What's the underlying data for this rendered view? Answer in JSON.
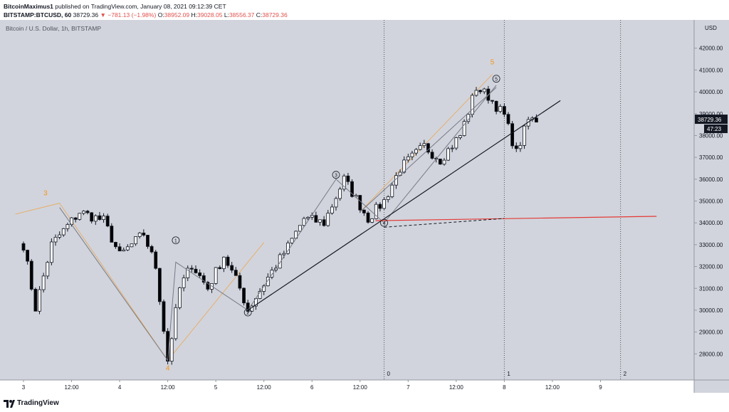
{
  "header": {
    "author": "BitcoinMaximus1",
    "published": "published on TradingView.com, January 08, 2021 09:12:39 CET",
    "symbol": "BITSTAMP:BTCUSD, 60",
    "last": "38729.36",
    "change_arrow": "▼",
    "change": "−781.13 (−1.98%)",
    "o_label": "O:",
    "o_value": "38952.09",
    "h_label": "H:",
    "h_value": "39028.05",
    "l_label": "L:",
    "l_value": "38556.37",
    "c_label": "C:",
    "c_value": "38729.36"
  },
  "colors": {
    "background": "#d1d4dc",
    "up_body": "#ffffff",
    "down_body": "#000000",
    "wick": "#131722",
    "wave_orange": "#f7931a",
    "resistance_red": "#e53935",
    "trend_black": "#131722",
    "price_tag": "#131722"
  },
  "footer": {
    "brand": "TradingView",
    "logo_icon": "tradingview-logo-icon"
  },
  "chart_data": {
    "type": "candlestick",
    "title": "Bitcoin / U.S. Dollar, 1h, BITSTAMP",
    "y_unit": "USD",
    "ylim": [
      27000,
      43000
    ],
    "y_ticks": [
      28000,
      29000,
      30000,
      31000,
      32000,
      33000,
      34000,
      35000,
      36000,
      37000,
      38000,
      39000,
      40000,
      41000,
      42000
    ],
    "x_range": [
      "2021-01-03T00:00",
      "2021-01-09T12:00"
    ],
    "x_tick_labels": [
      {
        "t": "2021-01-03T00:00",
        "label": "3"
      },
      {
        "t": "2021-01-03T12:00",
        "label": "12:00"
      },
      {
        "t": "2021-01-04T00:00",
        "label": "4"
      },
      {
        "t": "2021-01-04T12:00",
        "label": "12:00"
      },
      {
        "t": "2021-01-05T00:00",
        "label": "5"
      },
      {
        "t": "2021-01-05T12:00",
        "label": "12:00"
      },
      {
        "t": "2021-01-06T00:00",
        "label": "6"
      },
      {
        "t": "2021-01-06T12:00",
        "label": "12:00"
      },
      {
        "t": "2021-01-07T00:00",
        "label": "7"
      },
      {
        "t": "2021-01-07T12:00",
        "label": "12:00"
      },
      {
        "t": "2021-01-08T00:00",
        "label": "8"
      },
      {
        "t": "2021-01-08T12:00",
        "label": "12:00"
      },
      {
        "t": "2021-01-09T00:00",
        "label": "9"
      }
    ],
    "last_price": "38729.36",
    "countdown": "47:23",
    "ohlc_key_points": [
      {
        "t": "2021-01-03T00:00",
        "price": 33000
      },
      {
        "t": "2021-01-03T03:00",
        "price": 30100
      },
      {
        "t": "2021-01-03T07:00",
        "price": 33000
      },
      {
        "t": "2021-01-03T14:00",
        "price": 34500
      },
      {
        "t": "2021-01-03T20:00",
        "price": 34100
      },
      {
        "t": "2021-01-04T00:00",
        "price": 32500
      },
      {
        "t": "2021-01-04T06:00",
        "price": 33500
      },
      {
        "t": "2021-01-04T09:00",
        "price": 32000
      },
      {
        "t": "2021-01-04T12:00",
        "price": 27700
      },
      {
        "t": "2021-01-04T15:00",
        "price": 31000
      },
      {
        "t": "2021-01-04T18:00",
        "price": 32100
      },
      {
        "t": "2021-01-04T22:00",
        "price": 31000
      },
      {
        "t": "2021-01-05T02:00",
        "price": 32500
      },
      {
        "t": "2021-01-05T06:00",
        "price": 31000
      },
      {
        "t": "2021-01-05T08:00",
        "price": 30000
      },
      {
        "t": "2021-01-05T13:00",
        "price": 31500
      },
      {
        "t": "2021-01-05T18:00",
        "price": 32900
      },
      {
        "t": "2021-01-05T22:00",
        "price": 34200
      },
      {
        "t": "2021-01-06T03:00",
        "price": 34000
      },
      {
        "t": "2021-01-06T08:00",
        "price": 36000
      },
      {
        "t": "2021-01-06T14:00",
        "price": 34200
      },
      {
        "t": "2021-01-06T18:00",
        "price": 35000
      },
      {
        "t": "2021-01-06T22:00",
        "price": 36500
      },
      {
        "t": "2021-01-07T04:00",
        "price": 37500
      },
      {
        "t": "2021-01-07T08:00",
        "price": 36900
      },
      {
        "t": "2021-01-07T13:00",
        "price": 38000
      },
      {
        "t": "2021-01-07T17:00",
        "price": 40200
      },
      {
        "t": "2021-01-07T20:00",
        "price": 39800
      },
      {
        "t": "2021-01-08T00:00",
        "price": 38900
      },
      {
        "t": "2021-01-08T03:00",
        "price": 37200
      },
      {
        "t": "2021-01-08T06:00",
        "price": 38700
      },
      {
        "t": "2021-01-08T08:00",
        "price": 38729.36
      }
    ],
    "annotations": {
      "vertical_lines": [
        {
          "t": "2021-01-06T18:00",
          "label": "0"
        },
        {
          "t": "2021-01-08T00:00",
          "label": "1"
        },
        {
          "t": "2021-01-09T05:00",
          "label": "2"
        }
      ],
      "wave_labels_orange": [
        {
          "label": "3",
          "t": "2021-01-03T05:30",
          "price": 35000
        },
        {
          "label": "4",
          "t": "2021-01-04T12:00",
          "price": 27700
        },
        {
          "label": "5",
          "t": "2021-01-07T21:00",
          "price": 41000
        }
      ],
      "orange_lines": [
        [
          {
            "t": "2021-01-02T22:00",
            "price": 34400
          },
          {
            "t": "2021-01-03T09:00",
            "price": 34900
          }
        ],
        [
          {
            "t": "2021-01-03T09:00",
            "price": 34900
          },
          {
            "t": "2021-01-04T12:00",
            "price": 27700
          }
        ],
        [
          {
            "t": "2021-01-04T12:00",
            "price": 27700
          },
          {
            "t": "2021-01-05T12:00",
            "price": 33100
          }
        ],
        [
          {
            "t": "2021-01-06T12:00",
            "price": 34500
          },
          {
            "t": "2021-01-07T21:00",
            "price": 40800
          }
        ]
      ],
      "wave_labels_circled": [
        {
          "label": "1",
          "t": "2021-01-04T14:00",
          "price": 33200
        },
        {
          "label": "2",
          "t": "2021-01-05T08:00",
          "price": 29900
        },
        {
          "label": "3",
          "t": "2021-01-06T06:00",
          "price": 36200
        },
        {
          "label": "4",
          "t": "2021-01-06T18:00",
          "price": 34000
        },
        {
          "label": "5",
          "t": "2021-01-07T22:00",
          "price": 40600
        }
      ],
      "wave_path": [
        {
          "t": "2021-01-03T09:00",
          "price": 34700
        },
        {
          "t": "2021-01-04T12:00",
          "price": 27700
        },
        {
          "t": "2021-01-04T14:00",
          "price": 32200
        },
        {
          "t": "2021-01-05T08:00",
          "price": 30000
        },
        {
          "t": "2021-01-06T06:00",
          "price": 36000
        },
        {
          "t": "2021-01-06T18:00",
          "price": 34000
        },
        {
          "t": "2021-01-07T22:00",
          "price": 40300
        }
      ],
      "trend_line": [
        {
          "t": "2021-01-05T08:00",
          "price": 30000
        },
        {
          "t": "2021-01-08T14:00",
          "price": 39600
        }
      ],
      "upper_line": [
        {
          "t": "2021-01-06T12:00",
          "price": 34500
        },
        {
          "t": "2021-01-07T22:00",
          "price": 40200
        }
      ],
      "resistance_line": [
        {
          "t": "2021-01-06T18:00",
          "price": 34100
        },
        {
          "t": "2021-01-09T14:00",
          "price": 34300
        }
      ],
      "dashed_line": [
        {
          "t": "2021-01-06T18:00",
          "price": 33800
        },
        {
          "t": "2021-01-08T00:00",
          "price": 34200
        }
      ]
    }
  }
}
